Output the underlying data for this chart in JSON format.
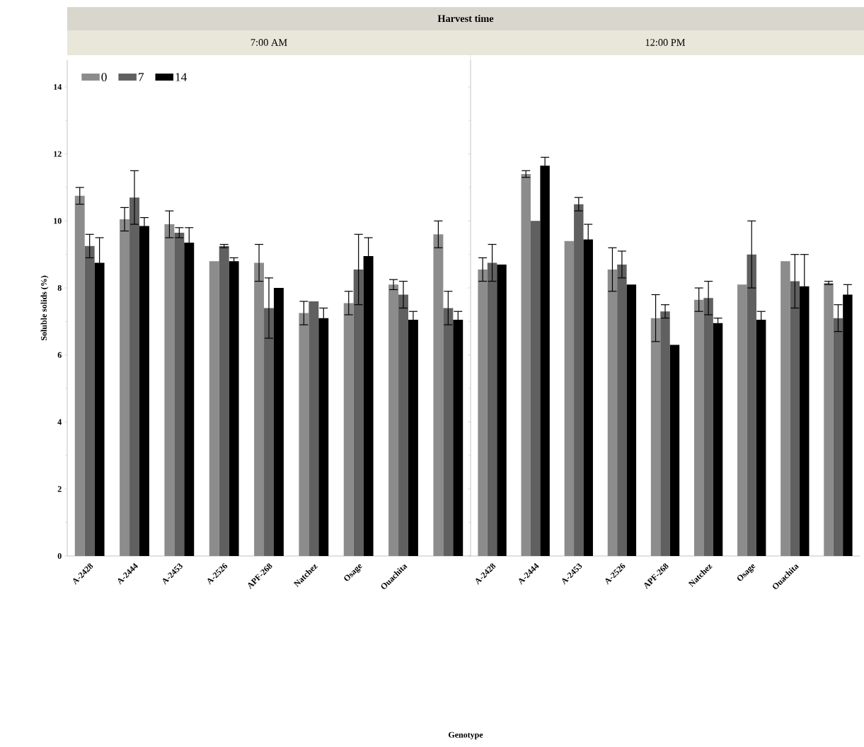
{
  "chart_data": [
    {
      "type": "bar",
      "title": "7:00 AM",
      "annotations": [
        "Harvest time"
      ],
      "xlabel": "Genotype",
      "ylabel": "Soluble solids (%)",
      "categories": [
        "A-2428",
        "A-2444",
        "A-2453",
        "A-2526",
        "APF-268",
        "Natchez",
        "Osage",
        "Ouachita",
        null
      ],
      "series": [
        {
          "name": "0",
          "color": "#8c8c8c",
          "values": [
            10.75,
            10.05,
            9.9,
            8.8,
            8.75,
            7.25,
            7.55,
            8.1,
            9.6
          ],
          "errors": [
            0.25,
            0.35,
            0.4,
            null,
            0.55,
            0.35,
            0.35,
            0.15,
            0.4
          ]
        },
        {
          "name": "7",
          "color": "#606060",
          "values": [
            9.25,
            10.7,
            9.65,
            9.25,
            7.4,
            7.6,
            8.55,
            7.8,
            7.4
          ],
          "errors": [
            0.35,
            0.8,
            0.15,
            0.05,
            0.9,
            null,
            1.05,
            0.4,
            0.5
          ]
        },
        {
          "name": "14",
          "color": "#000000",
          "values": [
            8.75,
            9.85,
            9.35,
            8.8,
            8.0,
            7.1,
            8.95,
            7.05,
            7.05
          ],
          "errors": [
            0.75,
            0.25,
            0.45,
            0.1,
            null,
            0.3,
            0.55,
            0.25,
            0.25
          ]
        }
      ],
      "ylim": [
        0,
        14.8
      ],
      "yticks": [
        0,
        2,
        4,
        6,
        8,
        10,
        12,
        14
      ],
      "legend": "top left"
    },
    {
      "type": "bar",
      "title": "12:00 PM",
      "categories": [
        "A-2428",
        "A-2444",
        "A-2453",
        "A-2526",
        "APF-268",
        "Natchez",
        "Osage",
        "Ouachita",
        null
      ],
      "series": [
        {
          "color": "#8c8c8c",
          "values": [
            8.55,
            11.4,
            9.4,
            8.55,
            7.1,
            7.65,
            8.1,
            8.8,
            8.15
          ],
          "errors": [
            0.35,
            0.1,
            null,
            0.65,
            0.7,
            0.35,
            null,
            null,
            0.05
          ]
        },
        {
          "color": "#606060",
          "values": [
            8.75,
            10.0,
            10.5,
            8.7,
            7.3,
            7.7,
            9.0,
            8.2,
            7.1
          ],
          "errors": [
            0.55,
            null,
            0.2,
            0.4,
            0.2,
            0.5,
            1.0,
            0.8,
            0.4
          ]
        },
        {
          "color": "#000000",
          "values": [
            8.7,
            11.65,
            9.45,
            8.1,
            6.3,
            6.95,
            7.05,
            8.05,
            7.8
          ],
          "errors": [
            null,
            0.25,
            0.45,
            null,
            null,
            0.15,
            0.25,
            0.95,
            0.3
          ]
        }
      ],
      "ylim": [
        0,
        14.8
      ],
      "yticks": [
        0,
        2,
        4,
        6,
        8,
        10,
        12,
        14
      ],
      "tick_labels": "x"
    }
  ]
}
